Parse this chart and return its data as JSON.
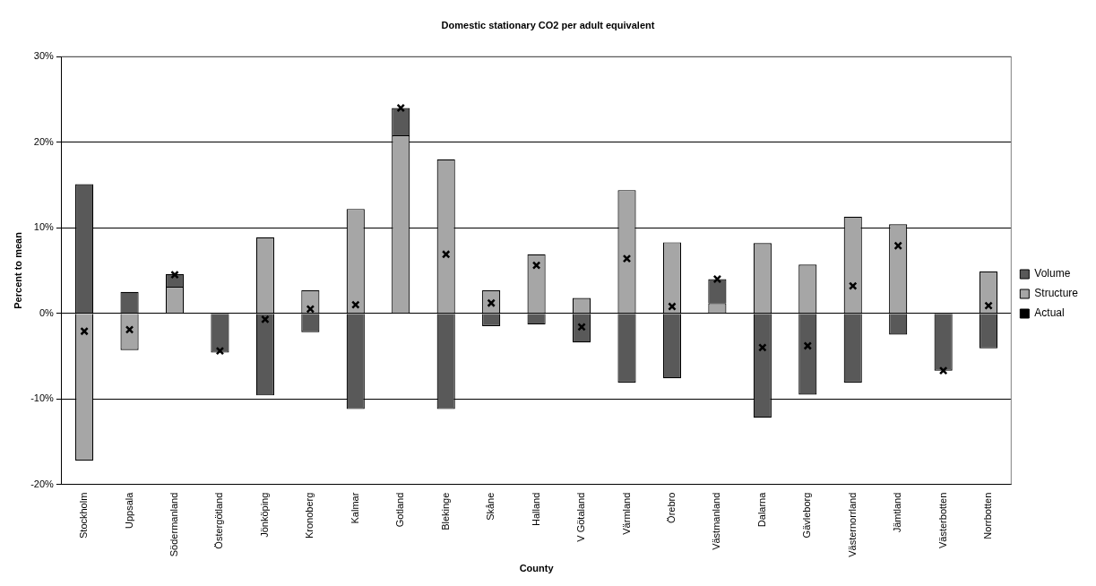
{
  "chart_data": {
    "type": "bar",
    "title": "Domestic stationary CO2 per adult equivalent",
    "xlabel": "County",
    "ylabel": "Percent to mean",
    "categories": [
      "Stockholm",
      "Uppsala",
      "Södermanland",
      "Östergötland",
      "Jönköping",
      "Kronoberg",
      "Kalmar",
      "Gotland",
      "Blekinge",
      "Skåne",
      "Halland",
      "V Götaland",
      "Värmland",
      "Örebro",
      "Västmanland",
      "Dalarna",
      "Gävleborg",
      "Västernorrland",
      "Jämtland",
      "Västerbotten",
      "Norrbotten"
    ],
    "stacked": true,
    "series": [
      {
        "name": "Structure",
        "color": "#a6a6a6",
        "values": [
          -17.2,
          -4.3,
          3.1,
          null,
          8.9,
          2.7,
          12.2,
          20.8,
          18.0,
          2.7,
          6.9,
          1.8,
          14.4,
          8.3,
          1.2,
          8.2,
          5.7,
          11.3,
          10.4,
          0,
          4.9
        ]
      },
      {
        "name": "Volume",
        "color": "#595959",
        "values": [
          15.1,
          2.5,
          1.5,
          -4.6,
          -9.6,
          -2.2,
          -11.2,
          3.2,
          -11.2,
          -1.5,
          -1.3,
          -3.4,
          -8.1,
          -7.6,
          2.8,
          -12.2,
          -9.5,
          -8.1,
          -2.5,
          -6.7,
          -4.1
        ]
      },
      {
        "name": "Actual",
        "type": "scatter",
        "color": "#000000",
        "x": [
          "Stockholm",
          "Uppsala",
          "Södermanland",
          "Östergötland",
          "Jönköping",
          "Kronoberg",
          "Kalmar",
          "Gotland",
          "Blekinge",
          "Skåne",
          "Halland",
          "V Götaland",
          "Värmland",
          "Örebro",
          "Västmanland",
          "Dalarna",
          "Gävleborg",
          "Västernorrland",
          "Jämtland",
          "Västerbotten",
          "Norrbotten"
        ],
        "values": [
          -2.1,
          -1.9,
          4.5,
          -4.4,
          -0.7,
          0.5,
          1.0,
          24.0,
          6.9,
          1.2,
          5.6,
          -1.6,
          6.4,
          0.8,
          4.0,
          -4.0,
          -3.8,
          3.2,
          7.9,
          -6.7,
          0.9
        ]
      }
    ],
    "ylim": [
      -20,
      30
    ],
    "yticks": [
      {
        "value": -20,
        "label": "-20%"
      },
      {
        "value": -10,
        "label": "-10%"
      },
      {
        "value": 0,
        "label": "0%"
      },
      {
        "value": 10,
        "label": "10%"
      },
      {
        "value": 20,
        "label": "20%"
      },
      {
        "value": 30,
        "label": "30%"
      }
    ],
    "grid": "y",
    "legend": "right",
    "marker": "cross"
  }
}
